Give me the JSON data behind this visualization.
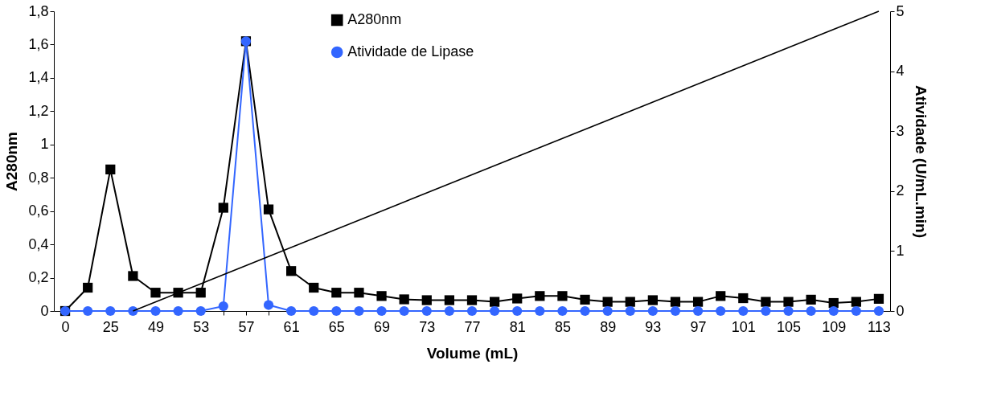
{
  "chart_data": {
    "type": "line",
    "xlabel": "Volume (mL)",
    "ylabel": "A280nm",
    "y2label": "Atividade (U/mL.min)",
    "categories": [
      "0",
      null,
      "25",
      null,
      "49",
      null,
      "53",
      null,
      "57",
      null,
      "61",
      null,
      "65",
      null,
      "69",
      null,
      "73",
      null,
      "77",
      null,
      "81",
      null,
      "85",
      null,
      "89",
      null,
      "93",
      null,
      "97",
      null,
      "101",
      null,
      "105",
      null,
      "109",
      null,
      "113"
    ],
    "series": [
      {
        "name": "A280nm",
        "color": "#000000",
        "marker": "square",
        "values": [
          0,
          0.14,
          0.85,
          0.21,
          0.11,
          0.11,
          0.11,
          0.62,
          1.62,
          0.61,
          0.24,
          0.14,
          0.11,
          0.11,
          0.09,
          0.07,
          0.065,
          0.065,
          0.065,
          0.055,
          0.075,
          0.09,
          0.09,
          0.068,
          0.055,
          0.055,
          0.065,
          0.055,
          0.055,
          0.09,
          0.077,
          0.055,
          0.055,
          0.068,
          0.048,
          0.055,
          0.073
        ]
      },
      {
        "name": "Atividade de Lipase",
        "color": "#3366ff",
        "marker": "circle",
        "axis": "y2",
        "values": [
          0,
          0,
          0,
          0,
          0,
          0,
          0,
          0.08,
          4.5,
          0.1,
          0,
          0,
          0,
          0,
          0,
          0,
          0,
          0,
          0,
          0,
          0,
          0,
          0,
          0,
          0,
          0,
          0,
          0,
          0,
          0,
          0,
          0,
          0,
          0,
          0,
          0,
          0
        ]
      },
      {
        "color": "#000000",
        "marker": "none",
        "axis": "y2",
        "values": [
          null,
          null,
          null,
          0,
          null,
          null,
          null,
          null,
          null,
          null,
          null,
          null,
          null,
          null,
          null,
          null,
          null,
          null,
          null,
          null,
          null,
          null,
          null,
          null,
          null,
          null,
          null,
          null,
          null,
          null,
          null,
          null,
          null,
          null,
          null,
          null,
          5
        ]
      }
    ],
    "ylim": [
      0,
      1.8
    ],
    "yticks": [
      0,
      {
        "value": 0.2,
        "label": "0,2"
      },
      {
        "value": 0.4,
        "label": "0,4"
      },
      {
        "value": 0.6,
        "label": "0,6"
      },
      {
        "value": 0.8,
        "label": "0,8"
      },
      1,
      {
        "value": 1.2,
        "label": "1,2"
      },
      {
        "value": 1.4,
        "label": "1,4"
      },
      {
        "value": 1.6,
        "label": "1,6"
      },
      {
        "value": 1.8,
        "label": "1,8"
      }
    ],
    "y2lim": [
      0,
      5
    ],
    "y2ticks": [
      0,
      1,
      2,
      3,
      4,
      5
    ],
    "grid": false,
    "legend": "top"
  }
}
